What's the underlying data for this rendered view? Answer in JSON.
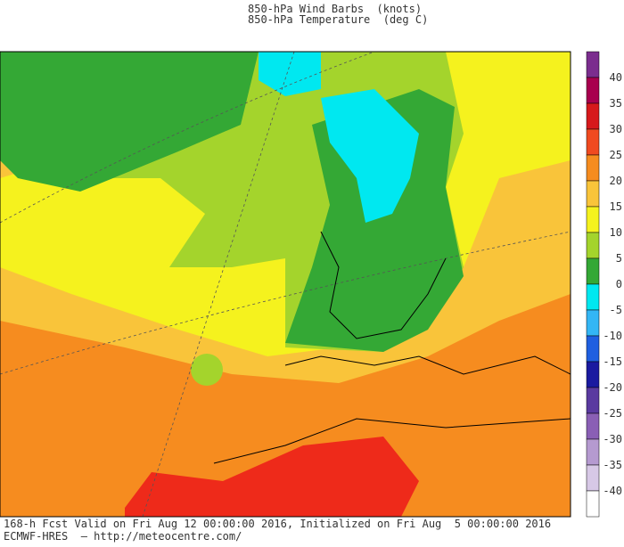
{
  "header": {
    "line1": "850-hPa Wind Barbs  (knots)",
    "line2": "850-hPa Temperature  (deg C)"
  },
  "colorbar": {
    "labels": [
      "40",
      "35",
      "30",
      "25",
      "20",
      "15",
      "10",
      "5",
      "0",
      "-5",
      "-10",
      "-15",
      "-20",
      "-25",
      "-30",
      "-35",
      "-40"
    ]
  },
  "footer": {
    "line1": "168-h Fcst Valid on Fri Aug 12 00:00:00 2016, Initialized on Fri Aug  5 00:00:00 2016",
    "line2": "ECMWF-HRES  — http://meteocentre.com/"
  }
}
